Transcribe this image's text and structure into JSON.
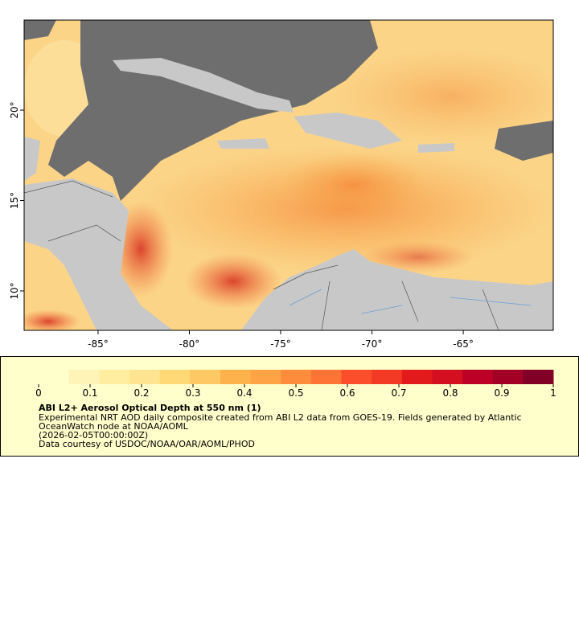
{
  "map": {
    "lon_range": [
      -89.05,
      -60.07
    ],
    "lat_range": [
      7.82,
      24.98
    ],
    "x_ticks": [
      {
        "value": -85,
        "label": "-85°"
      },
      {
        "value": -80,
        "label": "-80°"
      },
      {
        "value": -75,
        "label": "-75°"
      },
      {
        "value": -70,
        "label": "-70°"
      },
      {
        "value": -65,
        "label": "-65°"
      }
    ],
    "y_ticks": [
      {
        "value": 10,
        "label": "10°"
      },
      {
        "value": 15,
        "label": "15°"
      },
      {
        "value": 20,
        "label": "20°"
      }
    ]
  },
  "legend": {
    "colorbar": {
      "range": [
        0,
        1
      ],
      "ticks": [
        0,
        0.1,
        0.2,
        0.3,
        0.4,
        0.5,
        0.6,
        0.7,
        0.8,
        0.9,
        1
      ],
      "colors": [
        "#ffffcc",
        "#fff4b8",
        "#ffeda0",
        "#fee491",
        "#fed976",
        "#fec965",
        "#feb24c",
        "#fea446",
        "#fd8d3c",
        "#fd7435",
        "#fc4e2a",
        "#f23a25",
        "#e31a1c",
        "#d30f20",
        "#bd0026",
        "#a30026",
        "#800026"
      ]
    },
    "title": "ABI L2+ Aerosol Optical Depth at 550 nm (1)",
    "lines": [
      "Experimental NRT AOD daily composite created from ABI L2 data from GOES-19. Fields generated by Atlantic",
      "OceanWatch node at NOAA/AOML",
      "(2026-02-05T00:00:00Z)",
      "Data courtesy of USDOC/NOAA/OAR/AOML/PHOD"
    ]
  }
}
